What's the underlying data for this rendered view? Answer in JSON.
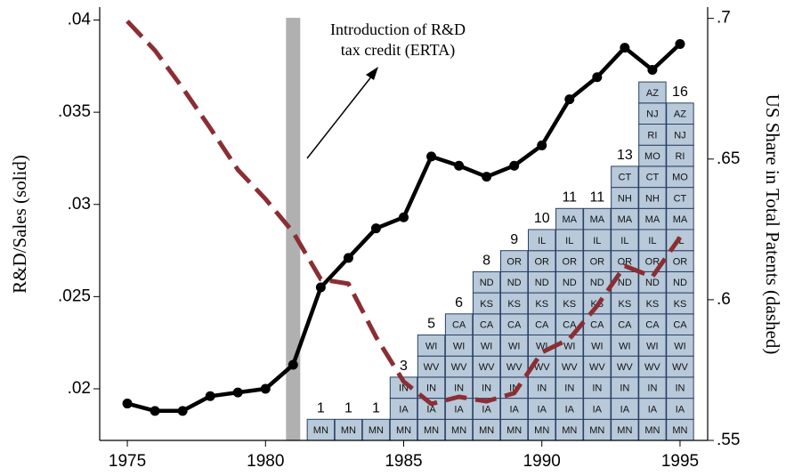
{
  "chart_data": {
    "type": "line",
    "xlim": [
      1974,
      1996
    ],
    "xticks": [
      1975,
      1980,
      1985,
      1990,
      1995
    ],
    "ylim": [
      0.0172,
      0.0407
    ],
    "yticks": [
      {
        "value": 0.02,
        "label": ".02"
      },
      {
        "value": 0.025,
        "label": ".025"
      },
      {
        "value": 0.03,
        "label": ".03"
      },
      {
        "value": 0.035,
        "label": ".035"
      },
      {
        "value": 0.04,
        "label": ".04"
      }
    ],
    "y2lim": [
      0.55,
      0.704
    ],
    "y2ticks": [
      {
        "value": 0.55,
        "label": ".55"
      },
      {
        "value": 0.6,
        "label": ".6"
      },
      {
        "value": 0.65,
        "label": ".65"
      },
      {
        "value": 0.7,
        "label": ".7"
      }
    ],
    "ylabel": "R&D/Sales (solid)",
    "y2label": "US Share in Total Patents (dashed)",
    "x": [
      1975,
      1976,
      1977,
      1978,
      1979,
      1980,
      1981,
      1982,
      1983,
      1984,
      1985,
      1986,
      1987,
      1988,
      1989,
      1990,
      1991,
      1992,
      1993,
      1994,
      1995
    ],
    "series": [
      {
        "color": "#000000",
        "style": "solid",
        "markers": true,
        "values": [
          0.0192,
          0.0188,
          0.0188,
          0.0196,
          0.0198,
          0.02,
          0.0213,
          0.0255,
          0.0271,
          0.0287,
          0.0293,
          0.0326,
          0.0321,
          0.0315,
          0.0321,
          0.0332,
          0.0357,
          0.0369,
          0.0385,
          0.0373,
          0.0387
        ]
      },
      {
        "color": "#8b2e33",
        "style": "dashed",
        "axis": "y2",
        "markers": false,
        "values": [
          0.699,
          0.6886,
          0.6753,
          0.661,
          0.6462,
          0.6358,
          0.624,
          0.6073,
          0.6057,
          0.5867,
          0.5709,
          0.563,
          0.5655,
          0.5639,
          0.5668,
          0.5813,
          0.5861,
          0.5978,
          0.612,
          0.6082,
          0.6222
        ]
      }
    ],
    "event": {
      "x": 1981,
      "color": "#b0b0b0",
      "label_lines": [
        "Introduction of R&D",
        "tax credit (ERTA)"
      ]
    },
    "state_bars": {
      "color": "#b8c9da",
      "edge": "#2b3f66",
      "x": [
        1982,
        1983,
        1984,
        1985,
        1986,
        1987,
        1988,
        1989,
        1990,
        1991,
        1992,
        1993,
        1994,
        1995
      ],
      "count_labels": [
        1,
        1,
        1,
        3,
        5,
        6,
        8,
        9,
        10,
        11,
        11,
        13,
        null,
        16
      ],
      "states": [
        [
          "MN"
        ],
        [
          "MN"
        ],
        [
          "MN"
        ],
        [
          "MN",
          "IA",
          "IN"
        ],
        [
          "MN",
          "IA",
          "IN",
          "WV",
          "WI"
        ],
        [
          "MN",
          "IA",
          "IN",
          "WV",
          "WI",
          "CA"
        ],
        [
          "MN",
          "IA",
          "IN",
          "WV",
          "WI",
          "CA",
          "KS",
          "ND"
        ],
        [
          "MN",
          "IA",
          "IN",
          "WV",
          "WI",
          "CA",
          "KS",
          "ND",
          "OR"
        ],
        [
          "MN",
          "IA",
          "IN",
          "WV",
          "WI",
          "CA",
          "KS",
          "ND",
          "OR",
          "IL"
        ],
        [
          "MN",
          "IA",
          "IN",
          "WV",
          "WI",
          "CA",
          "KS",
          "ND",
          "OR",
          "IL",
          "MA"
        ],
        [
          "MN",
          "IA",
          "IN",
          "WV",
          "WI",
          "CA",
          "KS",
          "ND",
          "OR",
          "IL",
          "MA"
        ],
        [
          "MN",
          "IA",
          "IN",
          "WV",
          "WI",
          "CA",
          "KS",
          "ND",
          "OR",
          "IL",
          "MA",
          "NH",
          "CT"
        ],
        [
          "MN",
          "IA",
          "IN",
          "WV",
          "WI",
          "CA",
          "KS",
          "ND",
          "OR",
          "IL",
          "MA",
          "NH",
          "CT",
          "MO",
          "RI",
          "NJ",
          "AZ"
        ],
        [
          "MN",
          "IA",
          "IN",
          "WV",
          "WI",
          "CA",
          "KS",
          "ND",
          "OR",
          "IL",
          "MA",
          "CT",
          "MO",
          "RI",
          "NJ",
          "AZ"
        ]
      ]
    }
  }
}
